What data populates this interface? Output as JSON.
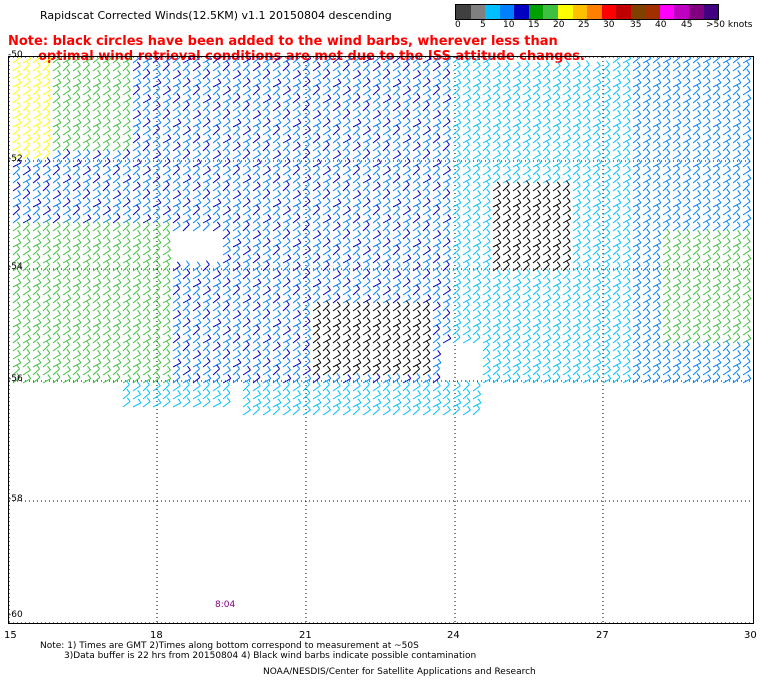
{
  "title": "Rapidscat Corrected Winds(12.5KM) v1.1 20150804 descending",
  "note_line1": "Note: black circles have been added to the wind barbs, wherever less than",
  "note_line2": "optimal wind retrieval conditions are met due to the ISS attitude changes.",
  "colorbar": {
    "colors": [
      "#404040",
      "#808080",
      "#00c0ff",
      "#0080ff",
      "#0000c0",
      "#00a000",
      "#40c040",
      "#ffff00",
      "#ffc000",
      "#ff8000",
      "#ff0000",
      "#c00000",
      "#804000",
      "#a03000",
      "#ff00ff",
      "#c000c0",
      "#800080",
      "#400080"
    ],
    "labels": [
      "0",
      "5",
      "10",
      "15",
      "20",
      "25",
      "30",
      "35",
      "40",
      "45",
      ">50 knots"
    ]
  },
  "lat_labels": [
    "-50",
    "-52",
    "-54",
    "-56",
    "-58",
    "-60"
  ],
  "lon_labels": [
    "15",
    "18",
    "21",
    "24",
    "27",
    "30"
  ],
  "time_label": "8:04",
  "footnote_line1": "Note: 1) Times are GMT 2)Times along bottom correspond to measurement at ~50S",
  "footnote_line2": "3)Data buffer is 22 hrs from 20150804 4) Black wind barbs indicate possible contamination",
  "credit": "NOAA/NESDIS/Center for Satellite Applications and Research"
}
